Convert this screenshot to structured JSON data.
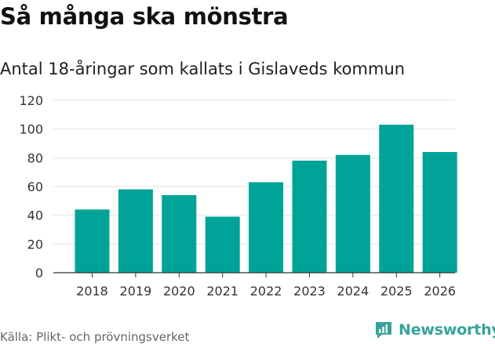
{
  "title": "Så många ska mönstra",
  "subtitle": "Antal 18-åringar som kallats i Gislaveds kommun",
  "source": "Källa: Plikt- och prövningsverket",
  "brand": {
    "name": "Newsworthy",
    "icon": "newsworthy-logo-icon"
  },
  "colors": {
    "bar": "#00a398",
    "grid": "#e3e3e3",
    "axis": "#333333",
    "brand": "#35a39b"
  },
  "chart_data": {
    "type": "bar",
    "title": "Så många ska mönstra",
    "subtitle": "Antal 18-åringar som kallats i Gislaveds kommun",
    "xlabel": "",
    "ylabel": "",
    "categories": [
      "2018",
      "2019",
      "2020",
      "2021",
      "2022",
      "2023",
      "2024",
      "2025",
      "2026"
    ],
    "values": [
      44,
      58,
      54,
      39,
      63,
      78,
      82,
      103,
      84
    ],
    "ylim": [
      0,
      120
    ],
    "yticks": [
      0,
      20,
      40,
      60,
      80,
      100,
      120
    ],
    "grid": true,
    "legend": "none"
  }
}
